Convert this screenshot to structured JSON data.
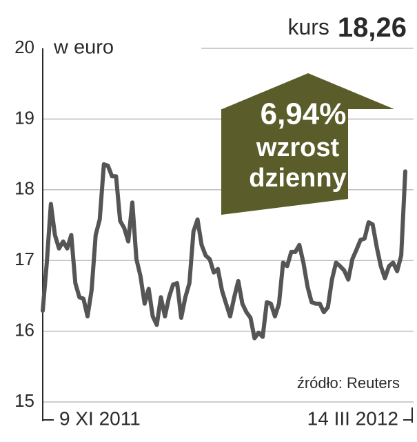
{
  "chart_data": {
    "type": "line",
    "title": "kurs",
    "y_label": "w euro",
    "source": "źródło: Reuters",
    "annotation": {
      "change": {
        "value": 6.94,
        "label": "6,94%"
      },
      "lines": [
        "wzrost",
        "dzienny"
      ]
    },
    "categories": [
      "9 XI 2011",
      null,
      null,
      null,
      null,
      null,
      null,
      null,
      null,
      null,
      null,
      null,
      null,
      null,
      null,
      null,
      null,
      null,
      null,
      null,
      null,
      null,
      null,
      null,
      null,
      null,
      null,
      null,
      null,
      null,
      null,
      null,
      null,
      null,
      null,
      null,
      null,
      null,
      null,
      null,
      null,
      null,
      null,
      null,
      null,
      null,
      null,
      null,
      null,
      null,
      null,
      null,
      null,
      null,
      null,
      null,
      null,
      null,
      null,
      null,
      null,
      null,
      null,
      null,
      null,
      null,
      null,
      null,
      null,
      null,
      null,
      null,
      null,
      null,
      null,
      null,
      null,
      null,
      null,
      null,
      null,
      null,
      null,
      null,
      null,
      null,
      null,
      null,
      null,
      "14 III 2012"
    ],
    "series": [
      {
        "name": "kurs",
        "color": "#555555",
        "values": [
          16.29,
          16.97,
          17.8,
          17.36,
          17.17,
          17.27,
          17.17,
          17.36,
          16.68,
          16.48,
          16.46,
          16.21,
          16.58,
          17.36,
          17.58,
          18.36,
          18.34,
          18.19,
          18.19,
          17.56,
          17.46,
          17.27,
          17.82,
          17.02,
          16.78,
          16.39,
          16.6,
          16.21,
          16.09,
          16.48,
          16.21,
          16.48,
          16.66,
          16.68,
          16.19,
          16.48,
          16.68,
          17.41,
          17.58,
          17.22,
          17.07,
          17.02,
          16.83,
          16.88,
          16.58,
          16.39,
          16.21,
          16.48,
          16.71,
          16.39,
          16.27,
          16.19,
          15.9,
          15.98,
          15.92,
          16.41,
          16.39,
          16.21,
          16.39,
          16.97,
          16.92,
          17.12,
          17.12,
          17.22,
          16.97,
          16.63,
          16.41,
          16.39,
          16.39,
          16.27,
          16.34,
          16.73,
          16.97,
          16.92,
          16.86,
          16.73,
          17.02,
          17.15,
          17.29,
          17.31,
          17.54,
          17.51,
          17.19,
          16.92,
          16.75,
          16.92,
          16.97,
          16.85,
          17.07,
          18.26
        ],
        "value_labels": [
          null,
          null,
          null,
          null,
          null,
          null,
          null,
          null,
          null,
          null,
          null,
          null,
          null,
          null,
          null,
          null,
          null,
          null,
          null,
          null,
          null,
          null,
          null,
          null,
          null,
          null,
          null,
          null,
          null,
          null,
          null,
          null,
          null,
          null,
          null,
          null,
          null,
          null,
          null,
          null,
          null,
          null,
          null,
          null,
          null,
          null,
          null,
          null,
          null,
          null,
          null,
          null,
          null,
          null,
          null,
          null,
          null,
          null,
          null,
          null,
          null,
          null,
          null,
          null,
          null,
          null,
          null,
          null,
          null,
          null,
          null,
          null,
          null,
          null,
          null,
          null,
          null,
          null,
          null,
          null,
          null,
          null,
          null,
          null,
          null,
          null,
          null,
          null,
          null,
          "18,26"
        ]
      }
    ],
    "ylim": [
      15,
      20
    ],
    "yticks": [
      15,
      16,
      17,
      18,
      19,
      20
    ],
    "grid": true,
    "annotation_color": "#5a5d2a"
  }
}
